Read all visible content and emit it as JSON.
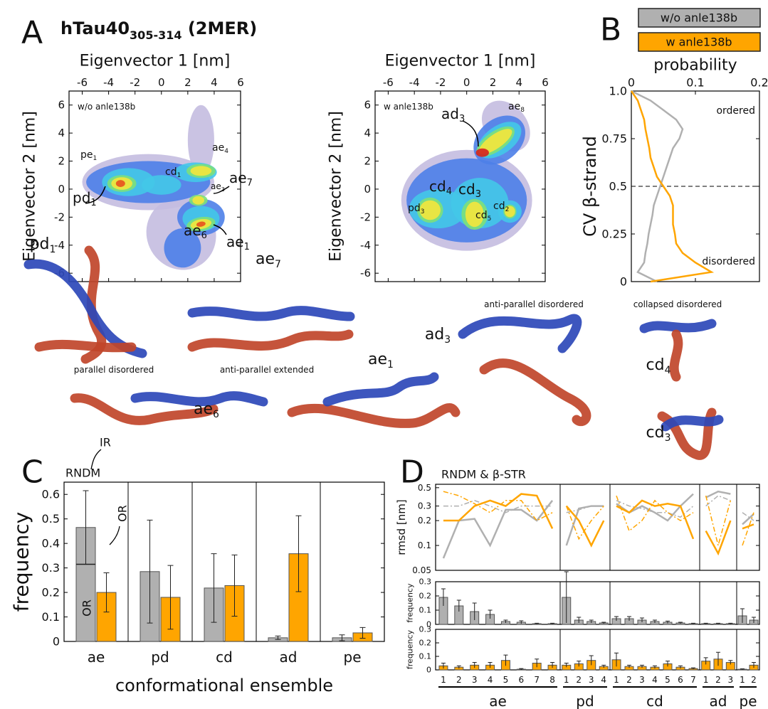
{
  "figure": {
    "title": {
      "text": "hTau40",
      "sub": "305-314",
      "rest": " (2MER)"
    },
    "panels": [
      "A",
      "B",
      "C",
      "D"
    ]
  },
  "structures": {
    "labels": [
      {
        "text": "pd",
        "sub": "1"
      },
      {
        "text": "ae",
        "sub": "7"
      },
      {
        "text": "ad",
        "sub": "3"
      },
      {
        "text": "cd",
        "sub": "4"
      },
      {
        "text": "cd",
        "sub": "3"
      },
      {
        "text": "ae",
        "sub": "6"
      },
      {
        "text": "ae",
        "sub": "1"
      }
    ],
    "captions": [
      "parallel disordered",
      "anti-parallel extended",
      "anti-parallel disordered",
      "collapsed disordered"
    ]
  },
  "chart_data": [
    {
      "type": "density",
      "xlabel": "Eigenvector 1 [nm]",
      "ylabel": "Eigenvector 2 [nm]",
      "label": "w/o anle138b",
      "xlim": [
        -7,
        6
      ],
      "ylim": [
        -6.6,
        7
      ],
      "xticks": [
        -6,
        -4,
        -2,
        0,
        2,
        4,
        6
      ],
      "yticks": [
        -6,
        -4,
        -2,
        0,
        2,
        4,
        6
      ],
      "annotations": [
        {
          "text": "pe",
          "sub": "1"
        },
        {
          "text": "pd",
          "sub": "1"
        },
        {
          "text": "cd",
          "sub": "1"
        },
        {
          "text": "ae",
          "sub": "4"
        },
        {
          "text": "ae",
          "sub": "3"
        },
        {
          "text": "ae",
          "sub": "7"
        },
        {
          "text": "ae",
          "sub": "1"
        },
        {
          "text": "ae",
          "sub": "6"
        }
      ]
    },
    {
      "type": "density",
      "xlabel": "Eigenvector 1 [nm]",
      "ylabel": "Eigenvector 2 [nm]",
      "label": "w anle138b",
      "xlim": [
        -7,
        6
      ],
      "ylim": [
        -6.6,
        7
      ],
      "xticks": [
        -6,
        -4,
        -2,
        0,
        2,
        4,
        6
      ],
      "yticks": [
        -6,
        -4,
        -2,
        0,
        2,
        4,
        6
      ],
      "annotations": [
        {
          "text": "ad",
          "sub": "3"
        },
        {
          "text": "ae",
          "sub": "8"
        },
        {
          "text": "cd",
          "sub": "4"
        },
        {
          "text": "cd",
          "sub": "3"
        },
        {
          "text": "pd",
          "sub": "3"
        },
        {
          "text": "cd",
          "sub": "5"
        },
        {
          "text": "cd",
          "sub": "2"
        }
      ]
    },
    {
      "type": "line",
      "orientation": "horizontal",
      "xlabel": "probability",
      "ylabel": "CV β-strand",
      "xlim": [
        0,
        0.2
      ],
      "xticks": [
        0,
        0.1,
        0.2
      ],
      "ylim": [
        0,
        1
      ],
      "yticks": [
        0,
        0.25,
        0.5,
        0.75,
        {
          "value": 1,
          "label": "1.0"
        }
      ],
      "hline": 0.5,
      "annotations": [
        "ordered",
        "disordered"
      ],
      "y": [
        1.0,
        0.95,
        0.9,
        0.85,
        0.8,
        0.75,
        0.7,
        0.65,
        0.6,
        0.55,
        0.5,
        0.45,
        0.4,
        0.35,
        0.3,
        0.25,
        0.2,
        0.15,
        0.1,
        0.05,
        0.0
      ],
      "series": [
        {
          "name": "w/o anle138b",
          "color": "#b0b0b0",
          "values": [
            0.0,
            0.03,
            0.05,
            0.07,
            0.08,
            0.075,
            0.065,
            0.06,
            0.055,
            0.05,
            0.045,
            0.04,
            0.035,
            0.033,
            0.03,
            0.027,
            0.025,
            0.022,
            0.02,
            0.01,
            0.04
          ]
        },
        {
          "name": "w anle138b",
          "color": "#ffa500",
          "values": [
            0.0,
            0.01,
            0.015,
            0.02,
            0.022,
            0.025,
            0.028,
            0.03,
            0.035,
            0.04,
            0.05,
            0.06,
            0.065,
            0.065,
            0.065,
            0.068,
            0.07,
            0.08,
            0.1,
            0.125,
            0.03
          ]
        }
      ]
    },
    {
      "type": "bar",
      "title": "RNDM",
      "xlabel": "conformational ensemble",
      "ylabel": "frequency",
      "categories": [
        "ae",
        "pd",
        "cd",
        "ad",
        "pe"
      ],
      "ylim": [
        0,
        0.65
      ],
      "yticks": [
        0,
        0.1,
        0.2,
        0.3,
        0.4,
        0.5,
        0.6
      ],
      "ir_or_split": 0.315,
      "annotations": [
        "IR",
        "OR",
        "OR"
      ],
      "series": [
        {
          "color": "#b0b0b0",
          "values": [
            0.465,
            0.285,
            0.218,
            0.015,
            0.015
          ],
          "errors": [
            0.15,
            0.21,
            0.14,
            0.007,
            0.012
          ]
        },
        {
          "color": "#ffa500",
          "values": [
            0.2,
            0.18,
            0.228,
            0.358,
            0.035
          ],
          "errors": [
            0.08,
            0.13,
            0.125,
            0.155,
            0.022
          ]
        }
      ]
    },
    {
      "type": "line",
      "title": "RNDM & β-STR",
      "ylabel": "rmsd [nm]",
      "log": true,
      "ylim": [
        0.05,
        0.55
      ],
      "yticks": [
        0.05,
        0.1,
        0.2,
        0.3,
        0.5
      ],
      "series": [
        {
          "color": "#b0b0b0",
          "style": "solid",
          "values": [
            0.07,
            0.2,
            0.21,
            0.1,
            0.27,
            0.27,
            0.2,
            0.35,
            0.1,
            0.28,
            0.3,
            0.3,
            0.32,
            0.25,
            0.3,
            0.25,
            0.2,
            0.3,
            0.42,
            0.38,
            0.45,
            0.42,
            0.18,
            0.24
          ]
        },
        {
          "color": "#b0b0b0",
          "style": "dashdot",
          "values": [
            0.3,
            0.3,
            0.35,
            0.3,
            0.25,
            0.3,
            0.3,
            0.3,
            0.25,
            0.27,
            0.3,
            0.3,
            0.35,
            0.3,
            0.28,
            0.25,
            0.25,
            0.22,
            0.3,
            0.3,
            0.4,
            0.35,
            0.25,
            0.2
          ]
        },
        {
          "color": "#ffa500",
          "style": "solid",
          "values": [
            0.2,
            0.2,
            0.3,
            0.35,
            0.3,
            0.42,
            0.4,
            0.16,
            0.3,
            0.2,
            0.1,
            0.2,
            0.3,
            0.25,
            0.35,
            0.3,
            0.32,
            0.3,
            0.12,
            0.15,
            0.08,
            0.2,
            0.16,
            0.18
          ]
        },
        {
          "color": "#ffa500",
          "style": "dashdot",
          "values": [
            0.45,
            0.4,
            0.32,
            0.25,
            0.35,
            0.35,
            0.2,
            0.25,
            0.3,
            0.12,
            0.2,
            0.3,
            0.4,
            0.15,
            0.2,
            0.35,
            0.25,
            0.2,
            0.25,
            0.4,
            0.1,
            0.35,
            0.1,
            0.25
          ]
        }
      ]
    },
    {
      "type": "bar",
      "ylabel": "frequency",
      "ylim": [
        0,
        0.3
      ],
      "yticks": [
        0,
        0.1,
        0.2,
        0.3
      ],
      "series": [
        {
          "color": "#b0b0b0",
          "values": [
            0.19,
            0.13,
            0.09,
            0.07,
            0.02,
            0.015,
            0.005,
            0.005,
            0.19,
            0.03,
            0.02,
            0.01,
            0.04,
            0.04,
            0.03,
            0.02,
            0.015,
            0.01,
            0.005,
            0.005,
            0.005,
            0.005,
            0.06,
            0.03
          ],
          "errors": [
            0.06,
            0.04,
            0.06,
            0.03,
            0.01,
            0.01,
            0.003,
            0.003,
            0.18,
            0.02,
            0.01,
            0.005,
            0.015,
            0.015,
            0.015,
            0.01,
            0.008,
            0.005,
            0.003,
            0.003,
            0.003,
            0.003,
            0.05,
            0.02
          ]
        }
      ]
    },
    {
      "type": "bar",
      "ylabel": "frequency",
      "ylim": [
        0,
        0.3
      ],
      "yticks": [
        0,
        0.1,
        0.2,
        0.3
      ],
      "series": [
        {
          "color": "#ffa500",
          "values": [
            0.03,
            0.02,
            0.035,
            0.035,
            0.07,
            0.005,
            0.05,
            0.035,
            0.035,
            0.045,
            0.07,
            0.025,
            0.075,
            0.025,
            0.025,
            0.02,
            0.045,
            0.02,
            0.01,
            0.065,
            0.08,
            0.055,
            0.005,
            0.035
          ],
          "errors": [
            0.02,
            0.01,
            0.02,
            0.02,
            0.04,
            0.005,
            0.03,
            0.02,
            0.015,
            0.02,
            0.035,
            0.01,
            0.05,
            0.01,
            0.01,
            0.01,
            0.02,
            0.01,
            0.005,
            0.025,
            0.05,
            0.015,
            0.003,
            0.02
          ]
        }
      ],
      "groups": [
        {
          "name": "ae",
          "categories": [
            1,
            2,
            3,
            4,
            5,
            6,
            7,
            8
          ]
        },
        {
          "name": "pd",
          "categories": [
            1,
            2,
            3,
            4
          ]
        },
        {
          "name": "cd",
          "categories": [
            1,
            2,
            3,
            4,
            5,
            6,
            7
          ]
        },
        {
          "name": "ad",
          "categories": [
            1,
            2,
            3
          ]
        },
        {
          "name": "pe",
          "categories": [
            1,
            2
          ]
        }
      ]
    }
  ]
}
